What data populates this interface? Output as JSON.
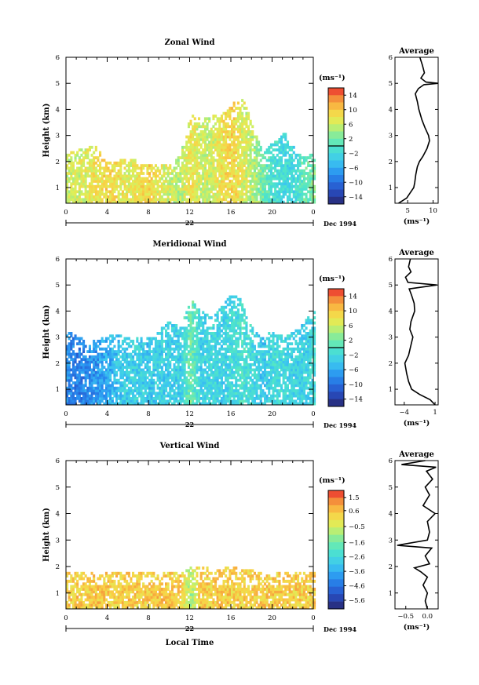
{
  "chart_data": [
    {
      "type": "heatmap",
      "title": "Zonal Wind",
      "ylabel": "Height (km)",
      "ylim": [
        0.4,
        6
      ],
      "y_ticks": [
        "1",
        "2",
        "3",
        "4",
        "5",
        "6"
      ],
      "xlim": [
        0,
        24
      ],
      "x_ticks": [
        "0",
        "4",
        "8",
        "12",
        "16",
        "20",
        "0"
      ],
      "day_label": "22",
      "date_label": "Dec 1994",
      "unit": "(ms⁻¹)",
      "colorbar": {
        "range": [
          -16,
          16
        ],
        "zero_line": 0,
        "tick_values": [
          14,
          10,
          6,
          2,
          -2,
          -6,
          -10,
          -14
        ],
        "tick_labels": [
          "14",
          "10",
          "6",
          "2",
          "−2",
          "−6",
          "−10",
          "−14"
        ]
      },
      "field": {
        "top_height_km": [
          2.3,
          2.4,
          2.6,
          2.5,
          2.0,
          2.0,
          2.1,
          2.0,
          1.9,
          1.8,
          1.9,
          2.2,
          3.8,
          3.6,
          3.7,
          3.9,
          4.2,
          4.4,
          3.4,
          2.3,
          2.7,
          3.2,
          2.5,
          2.1,
          2.3
        ],
        "typical_value": [
          6,
          6,
          7,
          8,
          9,
          8,
          7,
          8,
          9,
          7,
          6,
          5,
          8,
          6,
          6,
          8,
          9,
          7,
          5,
          2,
          -1,
          -2,
          -2,
          1,
          3
        ]
      },
      "average_profile": {
        "title": "Average",
        "xlabel": "(ms⁻¹)",
        "x_ticks": [
          "5",
          "10"
        ],
        "xlim": [
          2.5,
          11
        ],
        "height_km": [
          0.4,
          0.6,
          0.8,
          1.0,
          1.2,
          1.5,
          1.8,
          2.0,
          2.2,
          2.5,
          2.8,
          3.0,
          3.3,
          3.6,
          4.0,
          4.3,
          4.6,
          4.8,
          4.95,
          5.0,
          5.05,
          5.2,
          5.4,
          5.7,
          6.0
        ],
        "value": [
          3.2,
          4.8,
          5.5,
          6.2,
          6.4,
          6.6,
          6.9,
          7.3,
          8.0,
          8.8,
          9.3,
          9.1,
          8.4,
          7.8,
          7.2,
          6.9,
          6.5,
          7.1,
          8.2,
          11.0,
          8.6,
          7.6,
          8.3,
          7.9,
          7.4
        ]
      }
    },
    {
      "type": "heatmap",
      "title": "Meridional Wind",
      "ylabel": "Height (km)",
      "ylim": [
        0.4,
        6
      ],
      "y_ticks": [
        "1",
        "2",
        "3",
        "4",
        "5",
        "6"
      ],
      "xlim": [
        0,
        24
      ],
      "x_ticks": [
        "0",
        "4",
        "8",
        "12",
        "16",
        "20",
        "0"
      ],
      "day_label": "22",
      "date_label": "Dec 1994",
      "unit": "(ms⁻¹)",
      "colorbar": {
        "range": [
          -16,
          16
        ],
        "zero_line": 0,
        "tick_values": [
          14,
          10,
          6,
          2,
          -2,
          -6,
          -10,
          -14
        ],
        "tick_labels": [
          "14",
          "10",
          "6",
          "2",
          "−2",
          "−6",
          "−10",
          "−14"
        ]
      },
      "field": {
        "top_height_km": [
          3.2,
          3.0,
          2.8,
          2.9,
          3.1,
          3.1,
          3.0,
          2.9,
          3.0,
          3.3,
          3.6,
          3.3,
          4.4,
          4.0,
          3.7,
          4.2,
          4.6,
          4.4,
          3.3,
          3.0,
          3.2,
          3.0,
          3.2,
          3.6,
          4.0
        ],
        "typical_value": [
          -8,
          -9,
          -8,
          -7,
          -6,
          -4,
          -3,
          -3,
          -4,
          -3,
          -3,
          -3,
          2,
          -3,
          -2,
          -3,
          -2,
          -1,
          -2,
          -4,
          -2,
          -2,
          -3,
          -3,
          -2
        ]
      },
      "average_profile": {
        "title": "Average",
        "xlabel": "(ms⁻¹)",
        "x_ticks": [
          "−4",
          "1"
        ],
        "xlim": [
          -5.5,
          1.5
        ],
        "height_km": [
          0.4,
          0.6,
          0.8,
          1.0,
          1.3,
          1.6,
          2.0,
          2.3,
          2.6,
          3.0,
          3.3,
          3.6,
          4.0,
          4.3,
          4.6,
          4.85,
          5.0,
          5.1,
          5.3,
          5.5,
          5.7,
          6.0
        ],
        "value": [
          1.0,
          0.2,
          -1.5,
          -2.8,
          -3.3,
          -3.6,
          -3.9,
          -3.3,
          -3.0,
          -2.6,
          -3.1,
          -2.9,
          -2.3,
          -2.4,
          -2.8,
          -3.2,
          1.3,
          -3.4,
          -3.8,
          -2.9,
          -3.3,
          -3.0
        ]
      }
    },
    {
      "type": "heatmap",
      "title": "Vertical Wind",
      "ylabel": "Height (km)",
      "ylim": [
        0.4,
        6
      ],
      "y_ticks": [
        "1",
        "2",
        "3",
        "4",
        "5",
        "6"
      ],
      "xlim": [
        0,
        24
      ],
      "x_ticks": [
        "0",
        "4",
        "8",
        "12",
        "16",
        "20",
        "0"
      ],
      "day_label": "22",
      "date_label": "Dec 1994",
      "xlabel": "Local Time",
      "unit": "(ms⁻¹)",
      "colorbar": {
        "range": [
          -6.2,
          2.0
        ],
        "zero_line": null,
        "tick_values": [
          1.5,
          0.6,
          -0.5,
          -1.6,
          -2.6,
          -3.6,
          -4.6,
          -5.6
        ],
        "tick_labels": [
          "1.5",
          "0.6",
          "−0.5",
          "−1.6",
          "−2.6",
          "−3.6",
          "−4.6",
          "−5.6"
        ]
      },
      "field": {
        "top_height_km": [
          1.8,
          1.8,
          1.8,
          1.8,
          1.8,
          1.8,
          1.8,
          1.8,
          1.8,
          1.8,
          1.8,
          1.8,
          2.0,
          2.0,
          1.9,
          1.9,
          2.0,
          1.9,
          1.8,
          1.8,
          1.8,
          1.8,
          1.8,
          1.8,
          1.8
        ],
        "typical_value": [
          0.3,
          0.4,
          0.3,
          0.5,
          0.4,
          0.3,
          0.4,
          0.3,
          0.4,
          0.5,
          0.3,
          0.4,
          -1.0,
          0.4,
          0.3,
          0.5,
          0.4,
          0.3,
          0.3,
          0.4,
          0.4,
          0.3,
          0.4,
          0.3,
          0.4
        ]
      },
      "average_profile": {
        "title": "Average",
        "xlabel": "(ms⁻¹)",
        "x_ticks": [
          "−0.5",
          "0.0"
        ],
        "xlim": [
          -0.75,
          0.25
        ],
        "height_km": [
          0.4,
          0.7,
          1.0,
          1.3,
          1.6,
          1.8,
          1.95,
          2.1,
          2.4,
          2.7,
          2.8,
          3.0,
          3.3,
          3.7,
          4.0,
          4.3,
          4.7,
          5.0,
          5.3,
          5.6,
          5.75,
          5.85,
          6.0
        ],
        "value": [
          0.0,
          -0.05,
          0.0,
          -0.1,
          0.0,
          -0.15,
          -0.3,
          0.05,
          -0.05,
          0.1,
          -0.7,
          0.0,
          0.05,
          0.0,
          0.18,
          -0.1,
          0.05,
          -0.05,
          0.12,
          -0.02,
          0.2,
          -0.6,
          -0.05
        ]
      }
    }
  ]
}
